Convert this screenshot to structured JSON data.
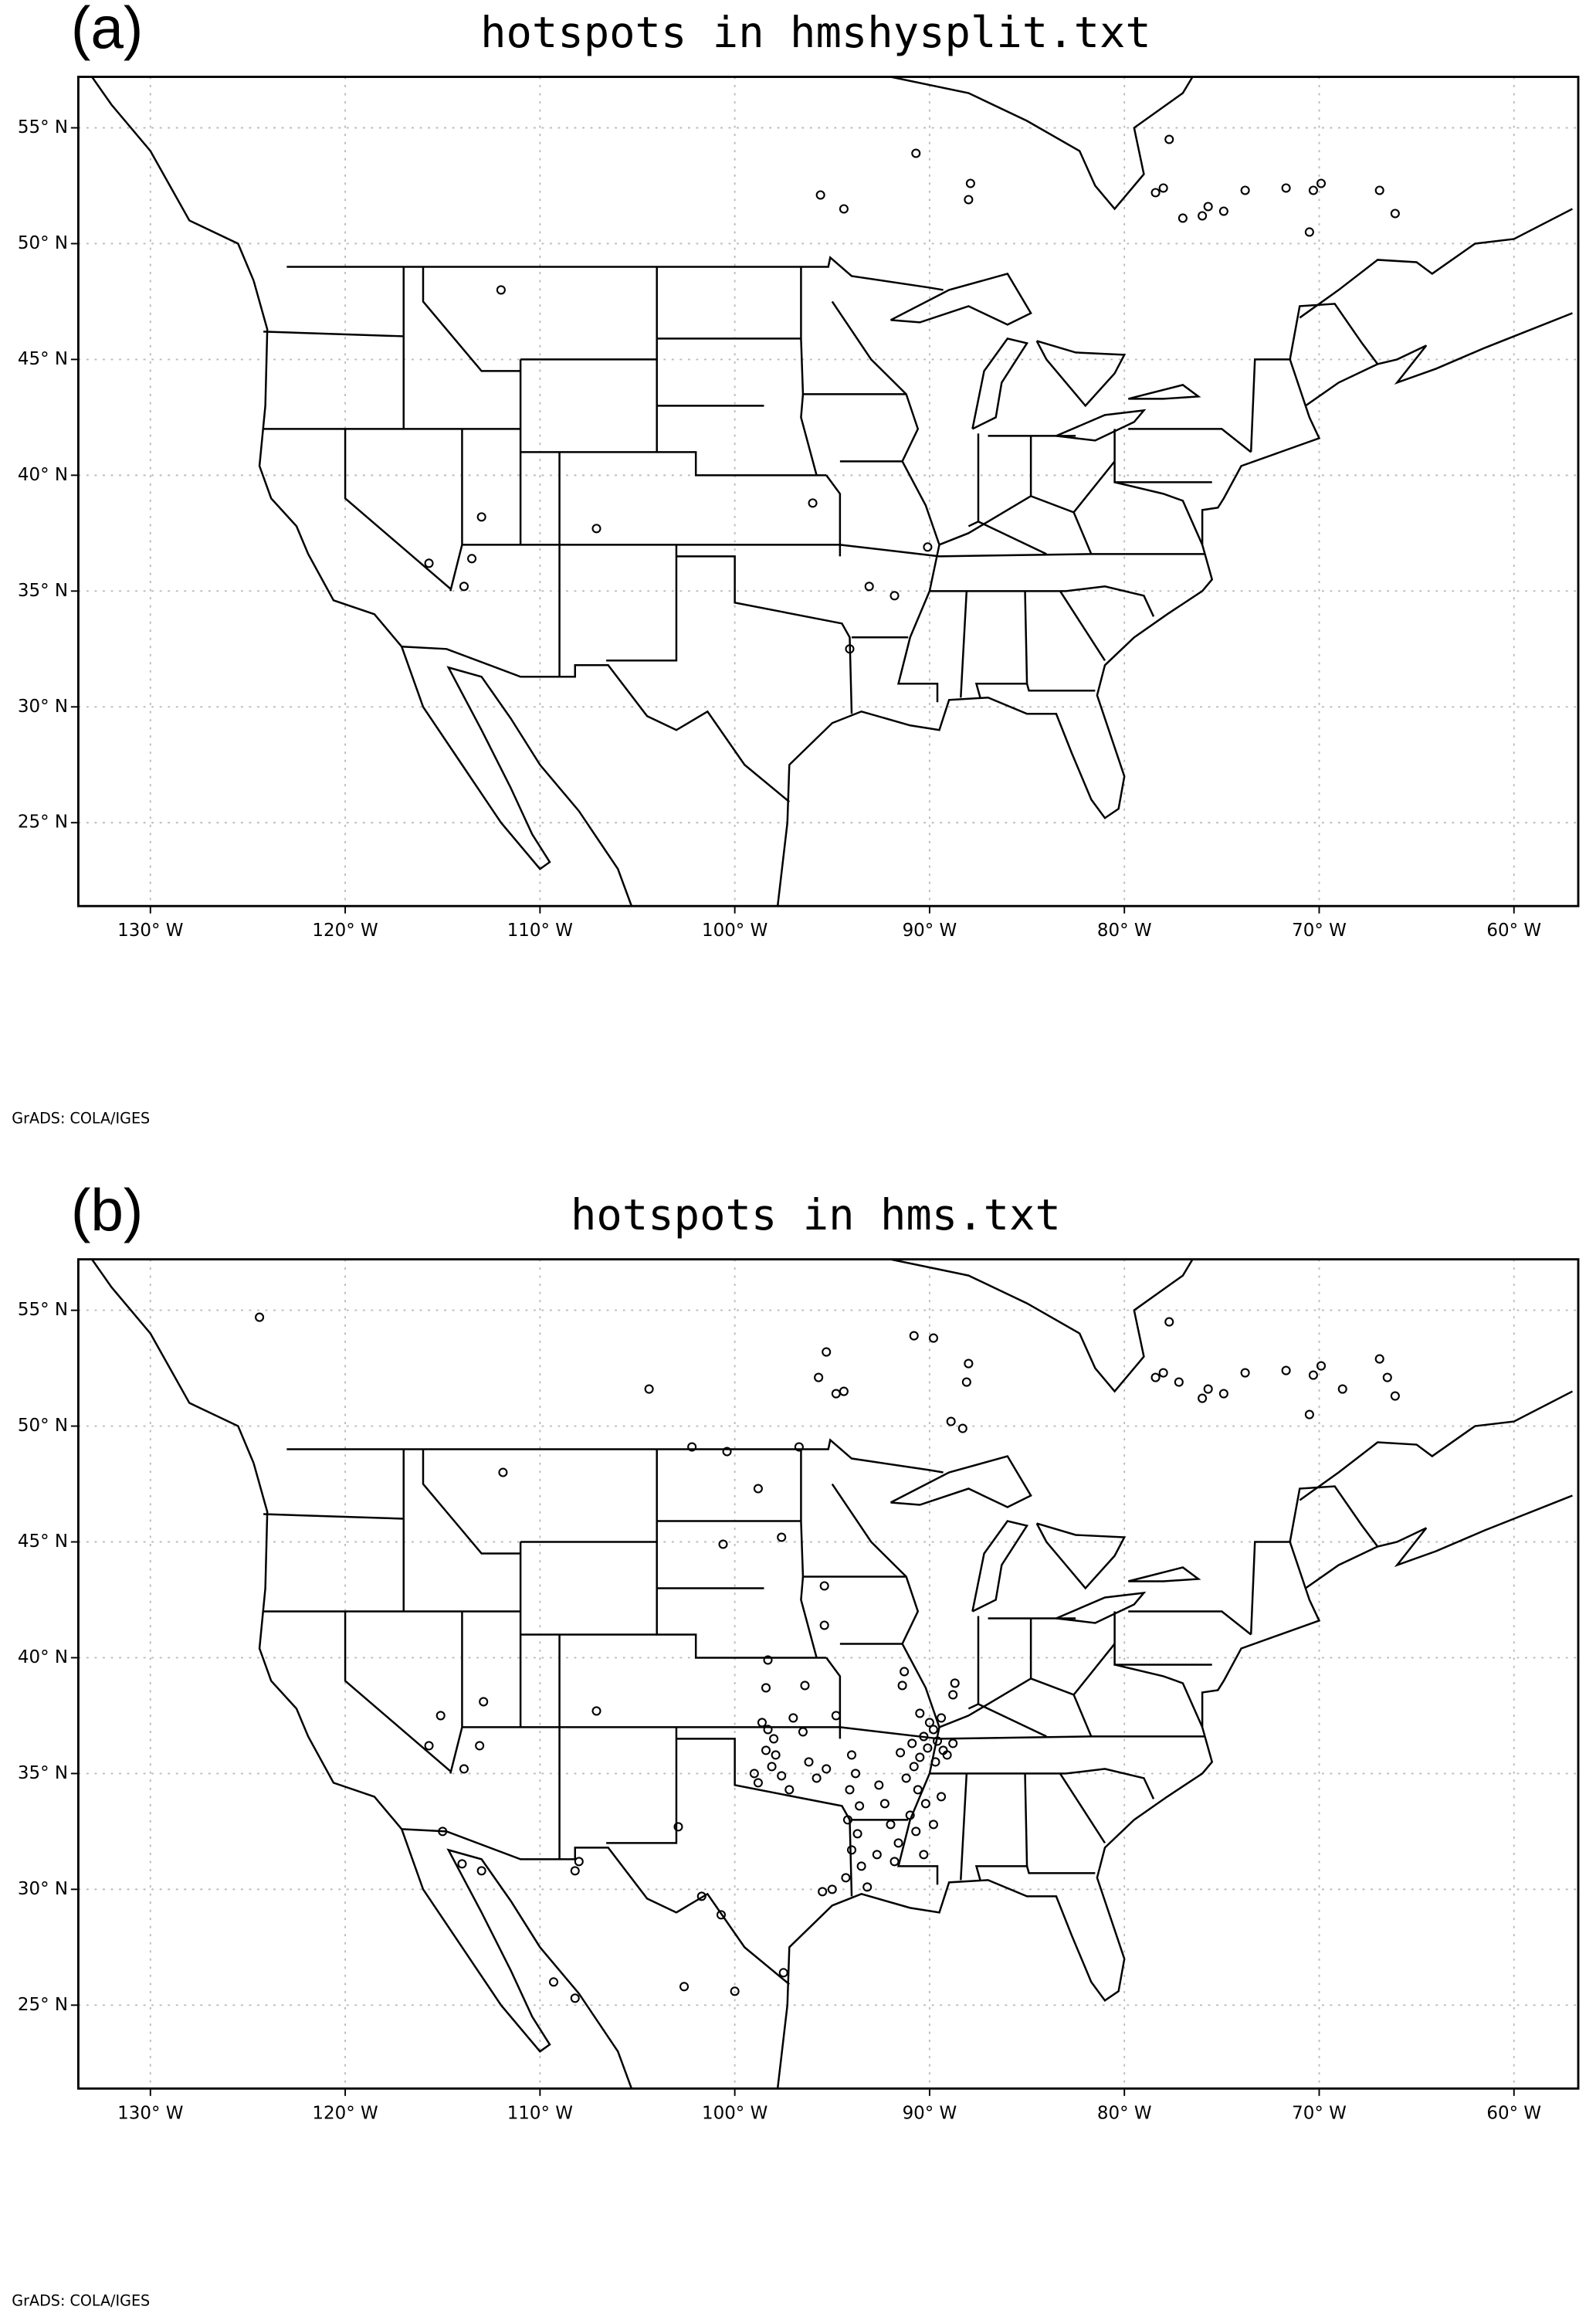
{
  "chart_data": [
    {
      "type": "scatter",
      "panel_label": "(a)",
      "title": "hotspots in hmshysplit.txt",
      "footer": "GrADS: COLA/IGES",
      "marker_color": "#000000",
      "grid": true,
      "xlim": [
        -133.7,
        -56.7
      ],
      "ylim": [
        21.4,
        57.2
      ],
      "xticks": [
        {
          "value": -130,
          "label": "130° W"
        },
        {
          "value": -120,
          "label": "120° W"
        },
        {
          "value": -110,
          "label": "110° W"
        },
        {
          "value": -100,
          "label": "100° W"
        },
        {
          "value": -90,
          "label": "90° W"
        },
        {
          "value": -80,
          "label": "80° W"
        },
        {
          "value": -70,
          "label": "70° W"
        },
        {
          "value": -60,
          "label": "60° W"
        }
      ],
      "yticks": [
        {
          "value": 25,
          "label": "25° N"
        },
        {
          "value": 30,
          "label": "30° N"
        },
        {
          "value": 35,
          "label": "35° N"
        },
        {
          "value": 40,
          "label": "40° N"
        },
        {
          "value": 45,
          "label": "45° N"
        },
        {
          "value": 50,
          "label": "50° N"
        },
        {
          "value": 55,
          "label": "55° N"
        }
      ],
      "x": [
        -115.7,
        -113.5,
        -113.9,
        -113.0,
        -107.1,
        -112.0,
        -96.0,
        -93.1,
        -91.8,
        -94.1,
        -90.7,
        -95.6,
        -94.4,
        -87.9,
        -88.0,
        -77.7,
        -78.0,
        -77.0,
        -75.7,
        -74.9,
        -73.8,
        -71.7,
        -69.9,
        -70.5,
        -66.9,
        -66.1,
        -90.1,
        -78.4,
        -76.0,
        -70.3
      ],
      "y": [
        36.2,
        36.4,
        35.2,
        38.2,
        37.7,
        48.0,
        38.8,
        35.2,
        34.8,
        32.5,
        53.9,
        52.1,
        51.5,
        52.6,
        51.9,
        54.5,
        52.4,
        51.1,
        51.6,
        51.4,
        52.3,
        52.4,
        52.6,
        50.5,
        52.3,
        51.3,
        36.9,
        52.2,
        51.2,
        52.3
      ]
    },
    {
      "type": "scatter",
      "panel_label": "(b)",
      "title": "hotspots in hms.txt",
      "footer": "GrADS: COLA/IGES",
      "marker_color": "#000000",
      "grid": true,
      "xlim": [
        -133.7,
        -56.7
      ],
      "ylim": [
        21.4,
        57.2
      ],
      "xticks": [
        {
          "value": -130,
          "label": "130° W"
        },
        {
          "value": -120,
          "label": "120° W"
        },
        {
          "value": -110,
          "label": "110° W"
        },
        {
          "value": -100,
          "label": "100° W"
        },
        {
          "value": -90,
          "label": "90° W"
        },
        {
          "value": -80,
          "label": "80° W"
        },
        {
          "value": -70,
          "label": "70° W"
        },
        {
          "value": -60,
          "label": "60° W"
        }
      ],
      "yticks": [
        {
          "value": 25,
          "label": "25° N"
        },
        {
          "value": 30,
          "label": "30° N"
        },
        {
          "value": 35,
          "label": "35° N"
        },
        {
          "value": 40,
          "label": "40° N"
        },
        {
          "value": 45,
          "label": "45° N"
        },
        {
          "value": 50,
          "label": "50° N"
        },
        {
          "value": 55,
          "label": "55° N"
        }
      ],
      "x": [
        -124.4,
        -104.4,
        -111.9,
        -115.7,
        -115.1,
        -112.9,
        -113.9,
        -107.1,
        -113.1,
        -115.0,
        -114.0,
        -113.0,
        -108.2,
        -108.0,
        -102.9,
        -101.7,
        -100.7,
        -102.6,
        -109.3,
        -108.2,
        -100.0,
        -97.5,
        -102.2,
        -100.4,
        -98.8,
        -97.6,
        -100.6,
        -96.7,
        -95.7,
        -95.3,
        -94.4,
        -94.8,
        -90.8,
        -89.8,
        -88.0,
        -88.1,
        -88.9,
        -88.3,
        -95.4,
        -95.4,
        -98.4,
        -98.3,
        -96.4,
        -94.8,
        -91.4,
        -91.3,
        -98.6,
        -98.3,
        -98.0,
        -98.4,
        -97.9,
        -98.1,
        -97.6,
        -99.0,
        -98.8,
        -97.0,
        -96.5,
        -96.2,
        -95.8,
        -95.3,
        -97.2,
        -94.0,
        -93.8,
        -94.1,
        -93.6,
        -94.2,
        -93.7,
        -94.0,
        -93.5,
        -94.3,
        -93.2,
        -95.0,
        -95.5,
        -92.6,
        -92.3,
        -92.0,
        -92.7,
        -91.8,
        -90.5,
        -90.0,
        -89.8,
        -90.3,
        -89.6,
        -90.1,
        -89.3,
        -90.5,
        -89.7,
        -90.8,
        -89.1,
        -88.8,
        -89.4,
        -90.9,
        -91.5,
        -91.2,
        -90.6,
        -90.2,
        -91.0,
        -90.7,
        -91.6,
        -90.3,
        -89.4,
        -89.8,
        -88.7,
        -88.8,
        -77.7,
        -78.0,
        -77.2,
        -75.7,
        -74.9,
        -73.8,
        -71.7,
        -69.9,
        -70.5,
        -66.9,
        -66.5,
        -66.1,
        -68.8,
        -78.4,
        -76.0,
        -70.3
      ],
      "y": [
        54.7,
        51.6,
        48.0,
        36.2,
        37.5,
        38.1,
        35.2,
        37.7,
        36.2,
        32.5,
        31.1,
        30.8,
        30.8,
        31.2,
        32.7,
        29.7,
        28.9,
        25.8,
        26.0,
        25.3,
        25.6,
        26.4,
        49.1,
        48.9,
        47.3,
        45.2,
        44.9,
        49.1,
        52.1,
        53.2,
        51.5,
        51.4,
        53.9,
        53.8,
        52.7,
        51.9,
        50.2,
        49.9,
        43.1,
        41.4,
        38.7,
        39.9,
        38.8,
        37.5,
        38.8,
        39.4,
        37.2,
        36.9,
        36.5,
        36.0,
        35.8,
        35.3,
        34.9,
        35.0,
        34.6,
        37.4,
        36.8,
        35.5,
        34.8,
        35.2,
        34.3,
        35.8,
        35.0,
        34.3,
        33.6,
        33.0,
        32.4,
        31.7,
        31.0,
        30.5,
        30.1,
        30.0,
        29.9,
        34.5,
        33.7,
        32.8,
        31.5,
        31.2,
        37.6,
        37.2,
        36.9,
        36.6,
        36.4,
        36.1,
        36.0,
        35.7,
        35.5,
        35.3,
        35.8,
        36.3,
        37.4,
        36.3,
        35.9,
        34.8,
        34.3,
        33.7,
        33.2,
        32.5,
        32.0,
        31.5,
        34.0,
        32.8,
        38.9,
        38.4,
        54.5,
        52.3,
        51.9,
        51.6,
        51.4,
        52.3,
        52.4,
        52.6,
        50.5,
        52.9,
        52.1,
        51.3,
        51.6,
        52.1,
        51.2,
        52.2
      ]
    }
  ]
}
